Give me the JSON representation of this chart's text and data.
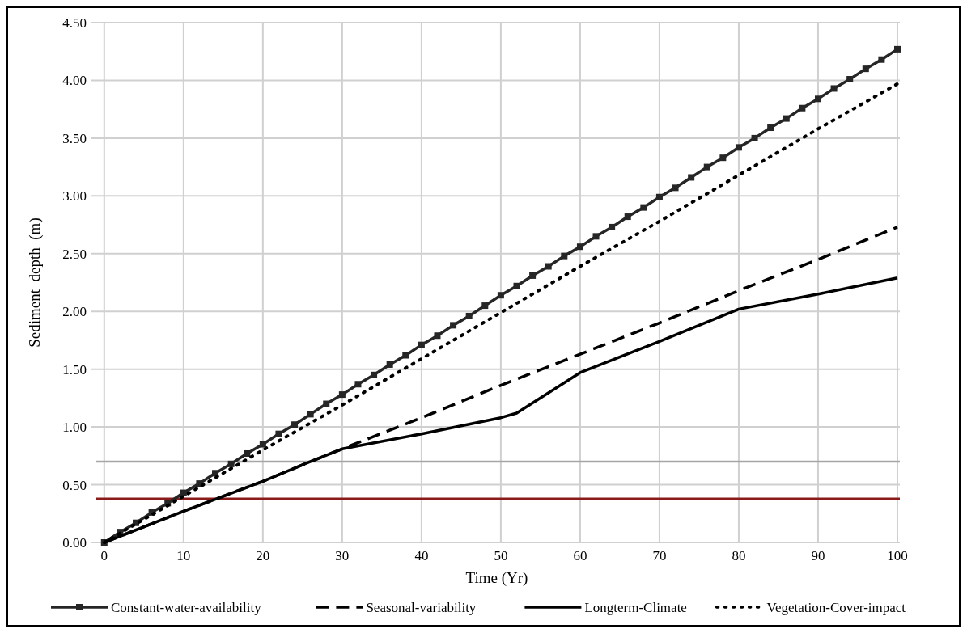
{
  "chart_data": {
    "type": "line",
    "xlabel": "Time (Yr)",
    "ylabel": "Sediment  depth  (m)",
    "xlim": [
      -1,
      100
    ],
    "xticks": [
      0,
      10,
      20,
      30,
      40,
      50,
      60,
      70,
      80,
      90,
      100
    ],
    "ylim": [
      0,
      4.5
    ],
    "yticks": [
      {
        "value": 0,
        "label": "0.00"
      },
      {
        "value": 0.5,
        "label": "0.50"
      },
      {
        "value": 1,
        "label": "1.00"
      },
      {
        "value": 1.5,
        "label": "1.50"
      },
      {
        "value": 2,
        "label": "2.00"
      },
      {
        "value": 2.5,
        "label": "2.50"
      },
      {
        "value": 3,
        "label": "3.00"
      },
      {
        "value": 3.5,
        "label": "3.50"
      },
      {
        "value": 4,
        "label": "4.00"
      },
      {
        "value": 4.5,
        "label": "4.50"
      }
    ],
    "grid": true,
    "legend": "bottom",
    "series": [
      {
        "name": "Constant-water-availability",
        "color": "#262626",
        "marker": "square",
        "line_style": "solid",
        "x": [
          0,
          2,
          4,
          6,
          8,
          10,
          12,
          14,
          16,
          18,
          20,
          22,
          24,
          26,
          28,
          30,
          32,
          34,
          36,
          38,
          40,
          42,
          44,
          46,
          48,
          50,
          52,
          54,
          56,
          58,
          60,
          62,
          64,
          66,
          68,
          70,
          72,
          74,
          76,
          78,
          80,
          82,
          84,
          86,
          88,
          90,
          92,
          94,
          96,
          98,
          100
        ],
        "values": [
          0,
          0.09,
          0.17,
          0.26,
          0.34,
          0.43,
          0.51,
          0.6,
          0.68,
          0.77,
          0.85,
          0.94,
          1.02,
          1.11,
          1.2,
          1.28,
          1.37,
          1.45,
          1.54,
          1.62,
          1.71,
          1.79,
          1.88,
          1.96,
          2.05,
          2.14,
          2.22,
          2.31,
          2.39,
          2.48,
          2.56,
          2.65,
          2.73,
          2.82,
          2.9,
          2.99,
          3.07,
          3.16,
          3.25,
          3.33,
          3.42,
          3.5,
          3.59,
          3.67,
          3.76,
          3.84,
          3.93,
          4.01,
          4.1,
          4.18,
          4.27
        ]
      },
      {
        "name": "Seasonal-variability",
        "color": "#000000",
        "marker": "none",
        "line_style": "dashed",
        "x": [
          0,
          10,
          20,
          26,
          30,
          40,
          50,
          60,
          70,
          80,
          90,
          100
        ],
        "values": [
          0,
          0.27,
          0.53,
          0.7,
          0.81,
          1.08,
          1.36,
          1.63,
          1.9,
          2.18,
          2.45,
          2.73
        ]
      },
      {
        "name": "Longterm-Climate",
        "color": "#000000",
        "marker": "none",
        "line_style": "solid",
        "x": [
          0,
          10,
          20,
          26,
          30,
          40,
          50,
          52,
          60,
          70,
          80,
          90,
          100
        ],
        "values": [
          0,
          0.27,
          0.53,
          0.7,
          0.81,
          0.94,
          1.08,
          1.12,
          1.47,
          1.74,
          2.02,
          2.15,
          2.29
        ]
      },
      {
        "name": "Vegetation-Cover-impact",
        "color": "#000000",
        "marker": "none",
        "line_style": "dotted",
        "x": [
          0,
          10,
          20,
          30,
          40,
          50,
          60,
          70,
          80,
          90,
          100
        ],
        "values": [
          0,
          0.4,
          0.8,
          1.19,
          1.59,
          1.99,
          2.39,
          2.78,
          3.18,
          3.58,
          3.97
        ]
      }
    ],
    "ref_lines": [
      {
        "axis": "y",
        "value": 0.7,
        "label": null,
        "color": "#a6a6a6"
      },
      {
        "axis": "y",
        "value": 0.38,
        "label": null,
        "color": "#8b1a1a"
      }
    ]
  }
}
